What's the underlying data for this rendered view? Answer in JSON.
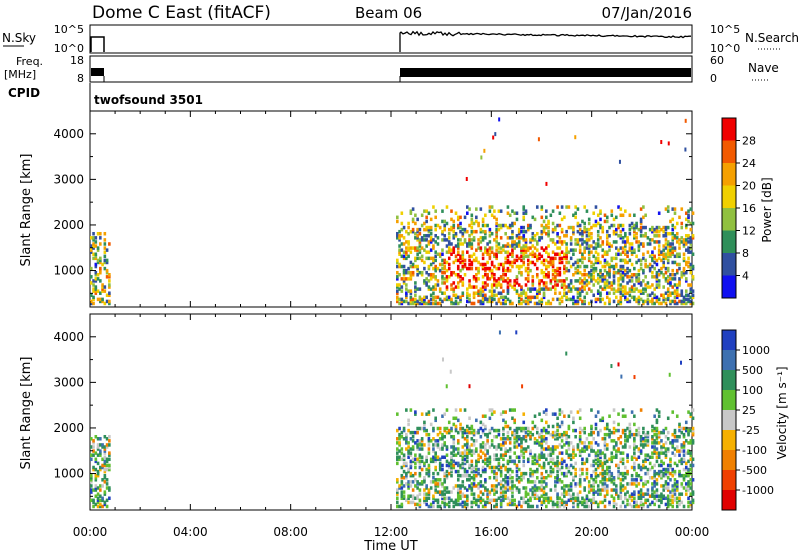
{
  "header": {
    "title": "Dome C East (fitACF)",
    "beam": "Beam 06",
    "date": "07/Jan/2016"
  },
  "panels": {
    "nsky": {
      "label": "N.Sky",
      "right_label": "N.Search",
      "ticks_left": [
        "10^5",
        "10^0"
      ],
      "ticks_right": [
        "10^5",
        "10^0"
      ]
    },
    "freq": {
      "label_line1": "Freq.",
      "label_line2": "[MHz]",
      "right_label": "Nave",
      "ticks_left": [
        "18",
        "8"
      ],
      "ticks_right": [
        "60",
        "0"
      ]
    },
    "cpid": {
      "label": "CPID",
      "value": "twofsound 3501"
    }
  },
  "chart_data": [
    {
      "type": "heatmap",
      "name": "power",
      "ylabel": "Slant Range [km]",
      "yticks": [
        "4000",
        "3000",
        "2000",
        "1000"
      ],
      "ylim": [
        200,
        4500
      ],
      "xlim": [
        0,
        24
      ],
      "colorbar": {
        "label": "Power [dB]",
        "ticks": [
          "28",
          "24",
          "20",
          "16",
          "12",
          "8",
          "4"
        ],
        "colors": [
          "#f00000",
          "#f25a00",
          "#f5a000",
          "#f0d000",
          "#90c040",
          "#2f8f5a",
          "#3050a0",
          "#1010f0"
        ]
      },
      "data_windows": [
        {
          "t_start": 0.0,
          "t_end": 0.8,
          "range_min": 250,
          "range_max": 1800
        },
        {
          "t_start": 12.2,
          "t_end": 24.0,
          "range_min": 250,
          "range_max": 2400
        }
      ]
    },
    {
      "type": "heatmap",
      "name": "velocity",
      "ylabel": "Slant Range [km]",
      "yticks": [
        "4000",
        "3000",
        "2000",
        "1000"
      ],
      "ylim": [
        200,
        4500
      ],
      "xlim": [
        0,
        24
      ],
      "xticks": [
        "00:00",
        "04:00",
        "08:00",
        "12:00",
        "16:00",
        "20:00",
        "00:00"
      ],
      "xlabel": "Time UT",
      "colorbar": {
        "label": "Velocity [m s⁻¹]",
        "ticks": [
          "1000",
          "500",
          "100",
          "25",
          "-25",
          "-100",
          "-500",
          "-1000"
        ],
        "colors": [
          "#2040c0",
          "#3d70b0",
          "#2f8f5a",
          "#60c030",
          "#c8c8c8",
          "#f5b000",
          "#f08000",
          "#f04000",
          "#e00000"
        ]
      },
      "data_windows": [
        {
          "t_start": 0.0,
          "t_end": 0.8,
          "range_min": 250,
          "range_max": 1800
        },
        {
          "t_start": 12.2,
          "t_end": 24.0,
          "range_min": 250,
          "range_max": 2400
        }
      ]
    }
  ]
}
